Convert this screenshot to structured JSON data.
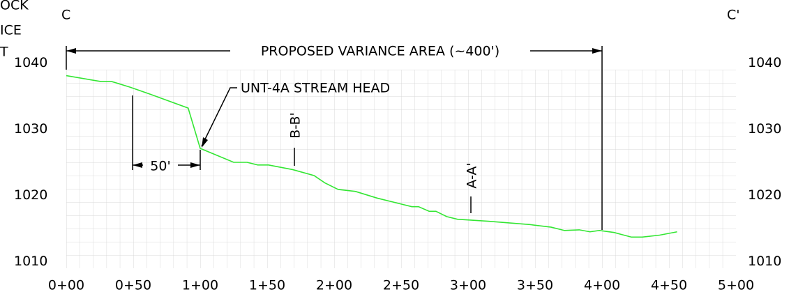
{
  "chart_data": {
    "type": "line",
    "annotations": [
      "C",
      "C'",
      "PROPOSED VARIANCE AREA (~400')",
      "UNT-4A STREAM HEAD",
      "50'",
      "B-B'",
      "A-A'",
      "OCK",
      "ICE",
      "T"
    ],
    "x": [
      0,
      26,
      34,
      47,
      62.5,
      91,
      100,
      125,
      135,
      143,
      151,
      169,
      185,
      193,
      203,
      216,
      232,
      250,
      258,
      263,
      271,
      276,
      284,
      292,
      315,
      346,
      362,
      372,
      383,
      391,
      398,
      409,
      422,
      430,
      443,
      456
    ],
    "series": [
      {
        "color": "#33e633",
        "values": [
          1038.1,
          1037.2,
          1037.2,
          1036.4,
          1035.3,
          1033.2,
          1027.1,
          1025.0,
          1025.0,
          1024.6,
          1024.6,
          1023.9,
          1023.0,
          1021.9,
          1020.9,
          1020.6,
          1019.6,
          1018.7,
          1018.3,
          1018.3,
          1017.6,
          1017.6,
          1016.8,
          1016.4,
          1016.1,
          1015.6,
          1015.2,
          1014.7,
          1014.8,
          1014.5,
          1014.7,
          1014.4,
          1013.7,
          1013.7,
          1014.0,
          1014.5
        ]
      }
    ],
    "xlim": [
      0,
      500
    ],
    "xticks": [
      {
        "value": 0,
        "label": "0+00"
      },
      {
        "value": 50,
        "label": "0+50"
      },
      {
        "value": 100,
        "label": "1+00"
      },
      {
        "value": 150,
        "label": "1+50"
      },
      {
        "value": 200,
        "label": "2+00"
      },
      {
        "value": 250,
        "label": "2+50"
      },
      {
        "value": 300,
        "label": "3+00"
      },
      {
        "value": 350,
        "label": "3+50"
      },
      {
        "value": 400,
        "label": "4+00"
      },
      {
        "value": 450,
        "label": "4+50"
      },
      {
        "value": 500,
        "label": "5+00"
      }
    ],
    "ylim": [
      1009,
      1039
    ],
    "yticks": [
      1010,
      1020,
      1030,
      1040
    ]
  }
}
